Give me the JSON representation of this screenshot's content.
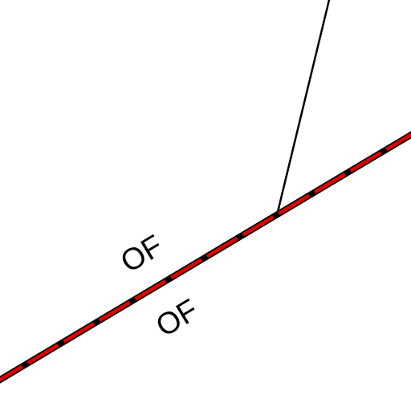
{
  "map": {
    "background": "#ffffff",
    "boundary_line": {
      "base_color": "#000000",
      "dash_color": "#e00000"
    },
    "branch_line": {
      "color": "#000000"
    },
    "labels": [
      {
        "text": "OF",
        "color": "#000000"
      },
      {
        "text": "OF",
        "color": "#000000"
      }
    ]
  }
}
